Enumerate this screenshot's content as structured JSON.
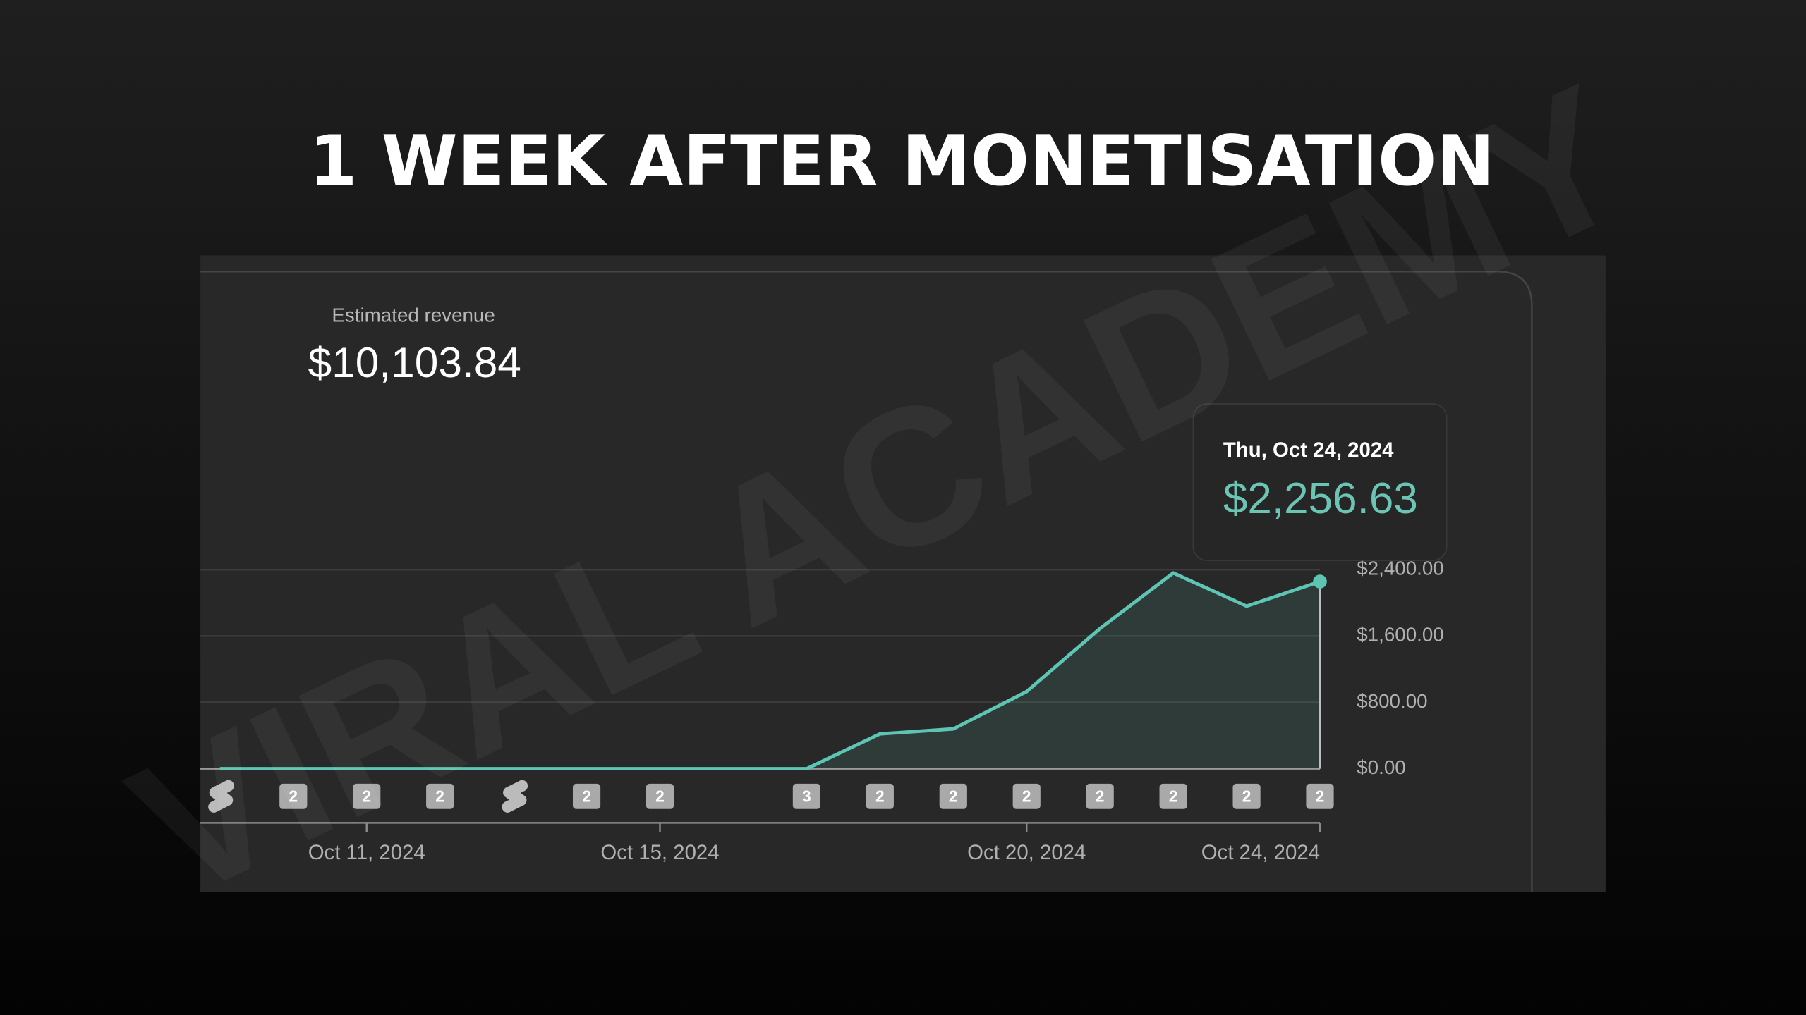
{
  "title": "1 WEEK AFTER MONETISATION",
  "watermark": "VIRAL ACADEMY",
  "chart_data": {
    "type": "area",
    "metric_label": "Estimated revenue",
    "total_label": "$10,103.84",
    "categories": [
      null,
      null,
      "Oct 11, 2024",
      null,
      null,
      null,
      "Oct 15, 2024",
      null,
      null,
      null,
      null,
      "Oct 20, 2024",
      null,
      null,
      null,
      "Oct 24, 2024"
    ],
    "values": [
      0,
      0,
      0,
      0,
      0,
      0,
      0,
      0,
      0,
      420,
      480,
      930,
      1690,
      2360,
      1960,
      2256.63
    ],
    "badges": [
      null,
      2,
      2,
      2,
      null,
      2,
      2,
      null,
      3,
      2,
      2,
      2,
      2,
      2,
      2,
      2
    ],
    "color": "#5ec4b3",
    "ylim": [
      0,
      2400
    ],
    "yticks": [
      {
        "value": 0,
        "label": "$0.00"
      },
      {
        "value": 800,
        "label": "$800.00"
      },
      {
        "value": 1600,
        "label": "$1,600.00"
      },
      {
        "value": 2400,
        "label": "$2,400.00"
      }
    ],
    "grid": true,
    "tooltip": {
      "date": "Thu, Oct 24, 2024",
      "label": "$2,256.63"
    }
  }
}
